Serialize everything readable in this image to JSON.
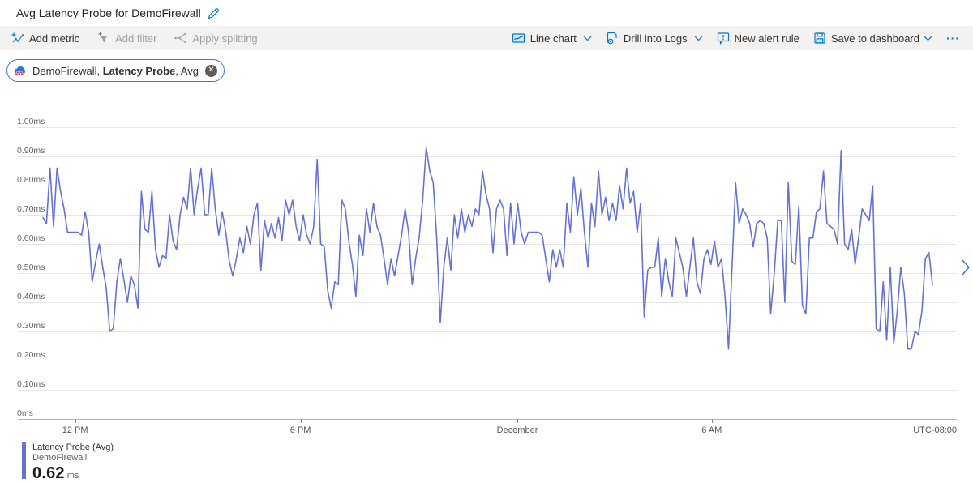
{
  "page_title": "Avg Latency Probe for DemoFirewall",
  "toolbar": {
    "add_metric": "Add metric",
    "add_filter": "Add filter",
    "apply_splitting": "Apply splitting",
    "line_chart": "Line chart",
    "drill_into_logs": "Drill into Logs",
    "new_alert_rule": "New alert rule",
    "save_to_dashboard": "Save to dashboard",
    "more": "···"
  },
  "filter_pill": {
    "icon": "firewall-icon",
    "resource_prefix": "DemoFirewall, ",
    "metric": "Latency Probe",
    "aggregation_suffix": ", Avg"
  },
  "legend": {
    "series_label": "Latency Probe (Avg)",
    "resource": "DemoFirewall",
    "value": "0.62",
    "unit": "ms"
  },
  "chart_data": {
    "type": "line",
    "title": "Avg Latency Probe for DemoFirewall",
    "xlabel": "",
    "ylabel": "",
    "unit": "ms",
    "ylim": [
      0,
      1.0
    ],
    "grid": true,
    "legend_position": "bottom-left",
    "yticks": [
      "1.00ms",
      "0.90ms",
      "0.80ms",
      "0.70ms",
      "0.60ms",
      "0.50ms",
      "0.40ms",
      "0.30ms",
      "0.20ms",
      "0.10ms",
      "0ms"
    ],
    "xticks": [
      {
        "label": "12 PM",
        "pos": 0.061
      },
      {
        "label": "6 PM",
        "pos": 0.301
      },
      {
        "label": "December",
        "pos": 0.532
      },
      {
        "label": "6 AM",
        "pos": 0.739
      }
    ],
    "timezone_label": "UTC-08:00",
    "series": [
      {
        "name": "Latency Probe (Avg)",
        "resource": "DemoFirewall",
        "aggregation": "Avg",
        "color": "#6472d8",
        "values": [
          0.69,
          0.67,
          0.86,
          0.66,
          0.86,
          0.78,
          0.72,
          0.64,
          0.64,
          0.64,
          0.64,
          0.63,
          0.71,
          0.64,
          0.47,
          0.54,
          0.6,
          0.52,
          0.45,
          0.3,
          0.31,
          0.47,
          0.55,
          0.48,
          0.4,
          0.49,
          0.46,
          0.38,
          0.78,
          0.65,
          0.64,
          0.78,
          0.58,
          0.52,
          0.56,
          0.55,
          0.7,
          0.61,
          0.58,
          0.7,
          0.76,
          0.72,
          0.86,
          0.7,
          0.79,
          0.86,
          0.7,
          0.7,
          0.86,
          0.72,
          0.63,
          0.71,
          0.64,
          0.54,
          0.49,
          0.55,
          0.62,
          0.57,
          0.66,
          0.6,
          0.7,
          0.74,
          0.51,
          0.68,
          0.62,
          0.67,
          0.62,
          0.69,
          0.61,
          0.75,
          0.7,
          0.75,
          0.66,
          0.61,
          0.7,
          0.63,
          0.6,
          0.66,
          0.89,
          0.6,
          0.59,
          0.44,
          0.38,
          0.47,
          0.46,
          0.75,
          0.72,
          0.61,
          0.53,
          0.42,
          0.63,
          0.56,
          0.72,
          0.64,
          0.74,
          0.66,
          0.63,
          0.55,
          0.46,
          0.55,
          0.49,
          0.56,
          0.63,
          0.72,
          0.64,
          0.46,
          0.55,
          0.62,
          0.75,
          0.93,
          0.85,
          0.81,
          0.62,
          0.33,
          0.52,
          0.62,
          0.51,
          0.7,
          0.62,
          0.72,
          0.64,
          0.7,
          0.66,
          0.72,
          0.7,
          0.85,
          0.77,
          0.72,
          0.57,
          0.72,
          0.75,
          0.72,
          0.56,
          0.74,
          0.6,
          0.74,
          0.64,
          0.6,
          0.64,
          0.64,
          0.64,
          0.64,
          0.63,
          0.55,
          0.47,
          0.58,
          0.52,
          0.58,
          0.52,
          0.74,
          0.64,
          0.83,
          0.7,
          0.79,
          0.64,
          0.52,
          0.74,
          0.66,
          0.85,
          0.7,
          0.76,
          0.68,
          0.74,
          0.68,
          0.8,
          0.72,
          0.86,
          0.74,
          0.78,
          0.64,
          0.74,
          0.35,
          0.51,
          0.52,
          0.52,
          0.62,
          0.42,
          0.55,
          0.47,
          0.42,
          0.62,
          0.57,
          0.52,
          0.42,
          0.52,
          0.62,
          0.47,
          0.43,
          0.55,
          0.58,
          0.53,
          0.61,
          0.52,
          0.55,
          0.42,
          0.24,
          0.52,
          0.81,
          0.67,
          0.72,
          0.7,
          0.67,
          0.59,
          0.67,
          0.68,
          0.67,
          0.62,
          0.36,
          0.5,
          0.68,
          0.68,
          0.4,
          0.81,
          0.54,
          0.53,
          0.73,
          0.39,
          0.36,
          0.62,
          0.62,
          0.71,
          0.72,
          0.85,
          0.67,
          0.66,
          0.65,
          0.6,
          0.92,
          0.6,
          0.58,
          0.65,
          0.53,
          0.62,
          0.72,
          0.7,
          0.68,
          0.8,
          0.31,
          0.3,
          0.47,
          0.27,
          0.52,
          0.26,
          0.37,
          0.52,
          0.43,
          0.24,
          0.24,
          0.3,
          0.29,
          0.37,
          0.55,
          0.57,
          0.46
        ]
      }
    ]
  }
}
